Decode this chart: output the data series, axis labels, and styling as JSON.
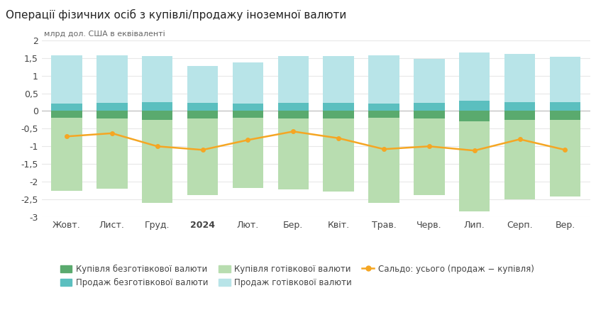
{
  "title": "Операції фізичних осіб з купівлі/продажу іноземної валюти",
  "ylabel": "млрд дол. США в еквіваленті",
  "months": [
    "Жовт.",
    "Лист.",
    "Груд.",
    "2024",
    "Лют.",
    "Бер.",
    "Квіт.",
    "Трав.",
    "Черв.",
    "Лип.",
    "Серп.",
    "Вер."
  ],
  "months_bold": [
    3
  ],
  "ylim": [
    -3.0,
    2.0
  ],
  "yticks": [
    -3.0,
    -2.5,
    -2.0,
    -1.5,
    -1.0,
    -0.5,
    0.0,
    0.5,
    1.0,
    1.5,
    2.0
  ],
  "sell_cashless_height": [
    0.2,
    0.22,
    0.25,
    0.22,
    0.2,
    0.22,
    0.22,
    0.2,
    0.22,
    0.3,
    0.25,
    0.25
  ],
  "sell_cash_total": [
    1.57,
    1.57,
    1.55,
    1.27,
    1.37,
    1.55,
    1.55,
    1.57,
    1.48,
    1.65,
    1.62,
    1.53
  ],
  "buy_cashless_height": [
    0.2,
    0.22,
    0.25,
    0.22,
    0.2,
    0.22,
    0.22,
    0.2,
    0.22,
    0.3,
    0.25,
    0.25
  ],
  "buy_cash_total": [
    2.25,
    2.2,
    2.6,
    2.38,
    2.18,
    2.22,
    2.28,
    2.6,
    2.38,
    2.85,
    2.5,
    2.42
  ],
  "saldo": [
    -0.72,
    -0.63,
    -1.0,
    -1.1,
    -0.82,
    -0.58,
    -0.77,
    -1.08,
    -1.0,
    -1.12,
    -0.8,
    -1.1
  ],
  "color_buy_cashless": "#5aaa6e",
  "color_sell_cashless": "#5bbfbf",
  "color_buy_cash": "#b8ddb0",
  "color_sell_cash": "#b8e4e8",
  "color_saldo": "#f5a623",
  "background": "#ffffff",
  "grid_color": "#e8e8e8"
}
